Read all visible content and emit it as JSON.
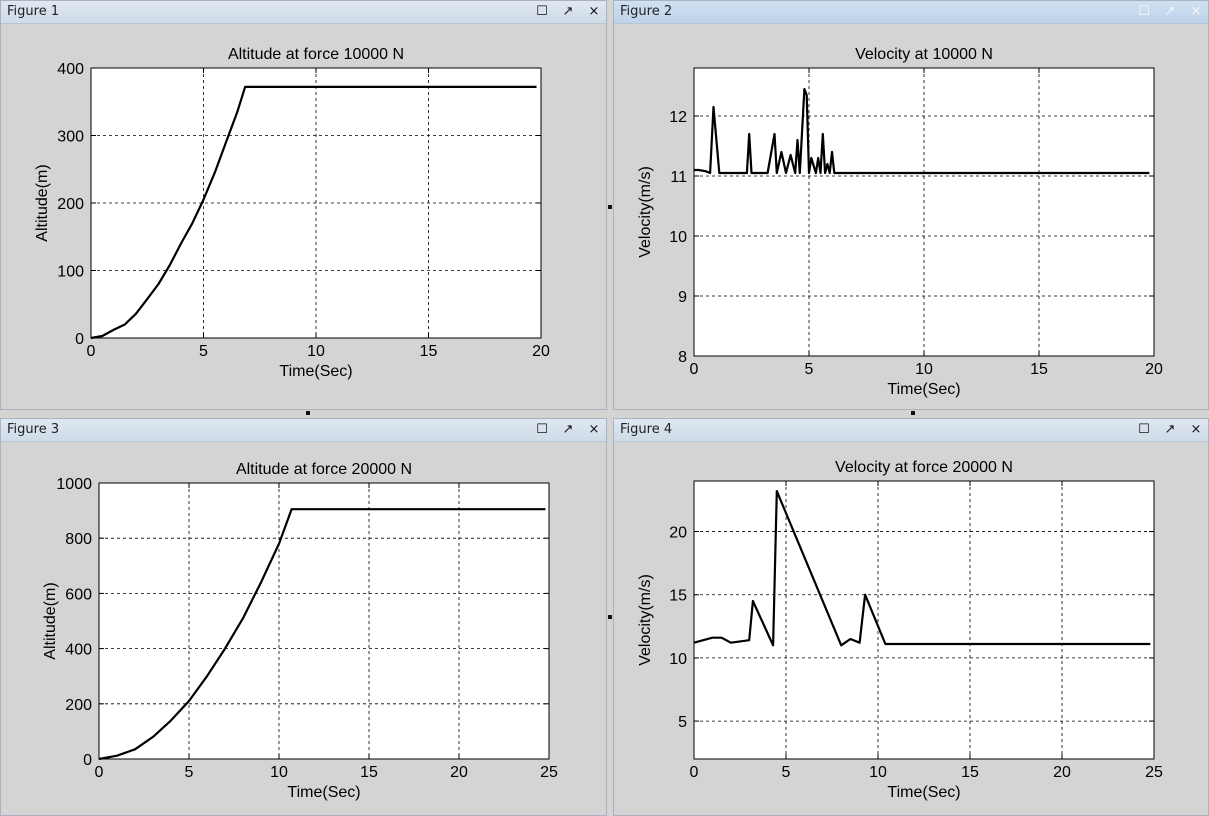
{
  "windows": [
    {
      "title": "Figure 1",
      "active": false
    },
    {
      "title": "Figure 2",
      "active": true
    },
    {
      "title": "Figure 3",
      "active": false
    },
    {
      "title": "Figure 4",
      "active": false
    }
  ],
  "window_buttons": {
    "maximize": "☐",
    "undock": "↗",
    "close": "×"
  },
  "colors": {
    "line": "#000000",
    "grid": "#000000",
    "axes_bg": "#ffffff",
    "figure_bg": "#d4d4d4"
  },
  "chart_data": [
    {
      "type": "line",
      "title": "Altitude at force 10000 N",
      "xlabel": "Time(Sec)",
      "ylabel": "Altitude(m)",
      "xlim": [
        0,
        20
      ],
      "ylim": [
        0,
        400
      ],
      "xticks": [
        0,
        5,
        10,
        15,
        20
      ],
      "yticks": [
        0,
        100,
        200,
        300,
        400
      ],
      "xtick_labels": [
        "0",
        "5",
        "10",
        "15",
        "20"
      ],
      "ytick_labels": [
        "0",
        "100",
        "200",
        "300",
        "400"
      ],
      "grid": true,
      "series": [
        {
          "x": [
            0,
            0.5,
            1,
            1.5,
            2,
            2.5,
            3,
            3.5,
            4,
            4.5,
            5,
            5.5,
            6,
            6.5,
            6.85,
            10,
            15,
            19.8
          ],
          "y": [
            0,
            3,
            12,
            20,
            36,
            58,
            80,
            108,
            140,
            170,
            205,
            245,
            290,
            335,
            372,
            372,
            372,
            372
          ]
        }
      ]
    },
    {
      "type": "line",
      "title": "Velocity at 10000 N",
      "xlabel": "Time(Sec)",
      "ylabel": "Velocity(m/s)",
      "xlim": [
        0,
        20
      ],
      "ylim": [
        8,
        12.8
      ],
      "xticks": [
        0,
        5,
        10,
        15,
        20
      ],
      "yticks": [
        8,
        9,
        10,
        11,
        12
      ],
      "xtick_labels": [
        "0",
        "5",
        "10",
        "15",
        "20"
      ],
      "ytick_labels": [
        "8",
        "9",
        "10",
        "11",
        "12"
      ],
      "grid": true,
      "series": [
        {
          "x": [
            0,
            0.2,
            0.5,
            0.7,
            0.85,
            1.1,
            1.3,
            1.6,
            2.3,
            2.4,
            2.5,
            2.7,
            3.2,
            3.5,
            3.6,
            3.8,
            4.0,
            4.2,
            4.4,
            4.5,
            4.6,
            4.8,
            4.9,
            5.0,
            5.1,
            5.3,
            5.4,
            5.5,
            5.6,
            5.7,
            5.8,
            5.9,
            6.0,
            6.1,
            6.2,
            10,
            15,
            19.8
          ],
          "y": [
            11.1,
            11.1,
            11.08,
            11.05,
            12.15,
            11.05,
            11.05,
            11.05,
            11.05,
            11.7,
            11.05,
            11.05,
            11.05,
            11.7,
            11.05,
            11.4,
            11.05,
            11.35,
            11.05,
            11.6,
            11.05,
            12.45,
            12.35,
            11.05,
            11.3,
            11.05,
            11.3,
            11.05,
            11.7,
            11.05,
            11.2,
            11.05,
            11.4,
            11.05,
            11.05,
            11.05,
            11.05,
            11.05
          ]
        }
      ]
    },
    {
      "type": "line",
      "title": "Altitude at force 20000 N",
      "xlabel": "Time(Sec)",
      "ylabel": "Altitude(m)",
      "xlim": [
        0,
        25
      ],
      "ylim": [
        0,
        1000
      ],
      "xticks": [
        0,
        5,
        10,
        15,
        20,
        25
      ],
      "yticks": [
        0,
        200,
        400,
        600,
        800,
        1000
      ],
      "xtick_labels": [
        "0",
        "5",
        "10",
        "15",
        "20",
        "25"
      ],
      "ytick_labels": [
        "0",
        "200",
        "400",
        "600",
        "800",
        "1000"
      ],
      "grid": true,
      "series": [
        {
          "x": [
            0,
            1,
            2,
            3,
            4,
            5,
            6,
            7,
            8,
            9,
            10,
            10.7,
            15,
            20,
            24.8
          ],
          "y": [
            0,
            12,
            35,
            80,
            140,
            210,
            300,
            400,
            510,
            640,
            780,
            905,
            905,
            905,
            905
          ]
        }
      ]
    },
    {
      "type": "line",
      "title": "Velocity at force 20000 N",
      "xlabel": "Time(Sec)",
      "ylabel": "Velocity(m/s)",
      "xlim": [
        0,
        25
      ],
      "ylim": [
        2,
        24
      ],
      "xticks": [
        0,
        5,
        10,
        15,
        20,
        25
      ],
      "yticks": [
        5,
        10,
        15,
        20
      ],
      "xtick_labels": [
        "0",
        "5",
        "10",
        "15",
        "20",
        "25"
      ],
      "ytick_labels": [
        "5",
        "10",
        "15",
        "20"
      ],
      "grid": true,
      "series": [
        {
          "x": [
            0,
            1,
            1.5,
            2,
            3,
            3.2,
            4.3,
            4.5,
            8,
            8.5,
            9,
            9.3,
            10.4,
            15,
            20,
            24.8
          ],
          "y": [
            11.2,
            11.6,
            11.6,
            11.2,
            11.4,
            14.5,
            11,
            23.2,
            11,
            11.5,
            11.2,
            15,
            11.1,
            11.1,
            11.1,
            11.1
          ]
        }
      ]
    }
  ]
}
